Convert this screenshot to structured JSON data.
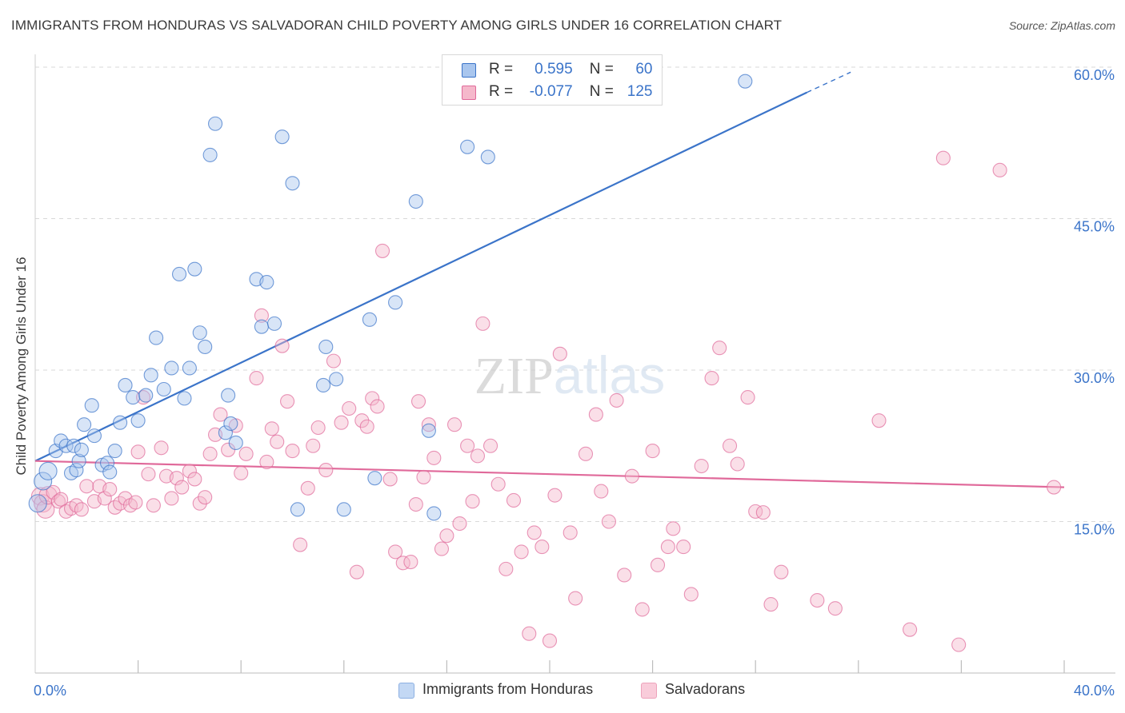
{
  "title": "IMMIGRANTS FROM HONDURAS VS SALVADORAN CHILD POVERTY AMONG GIRLS UNDER 16 CORRELATION CHART",
  "source": "Source: ZipAtlas.com",
  "watermark": "ZIPatlas",
  "colors": {
    "blue": "#3b74c9",
    "blue_fill": "#a9c6ee",
    "pink": "#e0699a",
    "pink_fill": "#f5b8cb",
    "grid": "#d9d9d9",
    "axis_text": "#3b74c9"
  },
  "stats_legend": [
    {
      "r_label": "R =",
      "r_value": "0.595",
      "n_label": "N =",
      "n_value": "60"
    },
    {
      "r_label": "R =",
      "r_value": "-0.077",
      "n_label": "N =",
      "n_value": "125"
    }
  ],
  "chart_data": {
    "type": "scatter",
    "title": "IMMIGRANTS FROM HONDURAS VS SALVADORAN CHILD POVERTY AMONG GIRLS UNDER 16 CORRELATION CHART",
    "xlabel": "",
    "ylabel": "Child Poverty Among Girls Under 16",
    "xlim": [
      0,
      40
    ],
    "ylim": [
      0,
      60
    ],
    "x_tick_labels": [
      "0.0%",
      "40.0%"
    ],
    "y_tick_labels": [
      "15.0%",
      "30.0%",
      "45.0%",
      "60.0%"
    ],
    "y_tick_values": [
      15,
      30,
      45,
      60
    ],
    "grid": true,
    "legend_position": "bottom",
    "series": [
      {
        "name": "Immigrants from Honduras",
        "color": "#3b74c9",
        "r": 0.595,
        "n": 60,
        "trend": {
          "x": [
            0,
            30
          ],
          "y": [
            21.0,
            57.5
          ],
          "dashed_to": [
            31.7,
            59.5
          ]
        },
        "points": [
          [
            0.1,
            16.8
          ],
          [
            0.3,
            19.0
          ],
          [
            0.5,
            20.0
          ],
          [
            0.8,
            22.0
          ],
          [
            1.0,
            23.0
          ],
          [
            1.2,
            22.5
          ],
          [
            1.4,
            19.8
          ],
          [
            1.5,
            22.5
          ],
          [
            1.6,
            20.1
          ],
          [
            1.7,
            21.0
          ],
          [
            1.8,
            22.1
          ],
          [
            1.9,
            24.6
          ],
          [
            2.2,
            26.5
          ],
          [
            2.3,
            23.5
          ],
          [
            2.6,
            20.6
          ],
          [
            2.8,
            20.8
          ],
          [
            2.9,
            19.9
          ],
          [
            3.1,
            22.0
          ],
          [
            3.3,
            24.8
          ],
          [
            3.5,
            28.5
          ],
          [
            3.8,
            27.3
          ],
          [
            4.0,
            25.0
          ],
          [
            4.3,
            27.5
          ],
          [
            4.5,
            29.5
          ],
          [
            4.7,
            33.2
          ],
          [
            5.0,
            28.1
          ],
          [
            5.3,
            30.2
          ],
          [
            5.6,
            39.5
          ],
          [
            5.8,
            27.2
          ],
          [
            6.0,
            30.2
          ],
          [
            6.2,
            40.0
          ],
          [
            6.4,
            33.7
          ],
          [
            6.6,
            32.3
          ],
          [
            6.8,
            51.3
          ],
          [
            7.0,
            54.4
          ],
          [
            7.4,
            23.8
          ],
          [
            7.5,
            27.5
          ],
          [
            7.6,
            24.7
          ],
          [
            7.8,
            22.8
          ],
          [
            8.6,
            39.0
          ],
          [
            8.8,
            34.3
          ],
          [
            9.0,
            38.7
          ],
          [
            9.3,
            34.6
          ],
          [
            9.6,
            53.1
          ],
          [
            10.0,
            48.5
          ],
          [
            10.2,
            16.2
          ],
          [
            11.2,
            28.5
          ],
          [
            11.3,
            32.3
          ],
          [
            11.7,
            29.1
          ],
          [
            12.0,
            16.2
          ],
          [
            13.0,
            35.0
          ],
          [
            13.2,
            19.3
          ],
          [
            14.0,
            36.7
          ],
          [
            14.8,
            46.7
          ],
          [
            15.3,
            24.0
          ],
          [
            15.5,
            15.8
          ],
          [
            16.8,
            52.1
          ],
          [
            17.6,
            51.1
          ],
          [
            23.7,
            58.7
          ],
          [
            27.6,
            58.6
          ]
        ]
      },
      {
        "name": "Salvadorans",
        "color": "#e0699a",
        "r": -0.077,
        "n": 125,
        "trend": {
          "x": [
            0,
            40
          ],
          "y": [
            21.0,
            18.4
          ]
        },
        "points": [
          [
            0.2,
            17.5
          ],
          [
            0.3,
            16.8
          ],
          [
            0.4,
            16.2
          ],
          [
            0.5,
            17.6
          ],
          [
            0.7,
            17.9
          ],
          [
            0.9,
            17.0
          ],
          [
            1.0,
            17.2
          ],
          [
            1.2,
            16.0
          ],
          [
            1.4,
            16.3
          ],
          [
            1.6,
            16.6
          ],
          [
            1.8,
            16.2
          ],
          [
            2.0,
            18.5
          ],
          [
            2.3,
            17.0
          ],
          [
            2.5,
            18.5
          ],
          [
            2.7,
            17.3
          ],
          [
            2.9,
            18.2
          ],
          [
            3.1,
            16.4
          ],
          [
            3.3,
            16.8
          ],
          [
            3.5,
            17.3
          ],
          [
            3.7,
            16.6
          ],
          [
            3.9,
            16.9
          ],
          [
            4.0,
            21.9
          ],
          [
            4.2,
            27.3
          ],
          [
            4.4,
            19.7
          ],
          [
            4.6,
            16.6
          ],
          [
            4.9,
            22.3
          ],
          [
            5.1,
            19.5
          ],
          [
            5.3,
            17.3
          ],
          [
            5.5,
            19.3
          ],
          [
            5.7,
            18.4
          ],
          [
            6.0,
            20.0
          ],
          [
            6.2,
            19.2
          ],
          [
            6.4,
            16.8
          ],
          [
            6.6,
            17.4
          ],
          [
            6.8,
            21.7
          ],
          [
            7.0,
            23.6
          ],
          [
            7.2,
            25.6
          ],
          [
            7.5,
            22.1
          ],
          [
            7.8,
            24.5
          ],
          [
            8.0,
            19.8
          ],
          [
            8.2,
            21.7
          ],
          [
            8.6,
            29.2
          ],
          [
            8.8,
            35.4
          ],
          [
            9.0,
            20.9
          ],
          [
            9.2,
            24.2
          ],
          [
            9.4,
            22.9
          ],
          [
            9.6,
            32.4
          ],
          [
            9.8,
            26.9
          ],
          [
            10.0,
            22.0
          ],
          [
            10.3,
            12.7
          ],
          [
            10.6,
            18.3
          ],
          [
            10.8,
            22.5
          ],
          [
            11.0,
            24.3
          ],
          [
            11.3,
            20.1
          ],
          [
            11.6,
            30.9
          ],
          [
            11.9,
            24.8
          ],
          [
            12.2,
            26.2
          ],
          [
            12.5,
            10.0
          ],
          [
            12.7,
            25.0
          ],
          [
            12.9,
            24.4
          ],
          [
            13.1,
            27.2
          ],
          [
            13.3,
            26.4
          ],
          [
            13.5,
            41.8
          ],
          [
            13.8,
            19.2
          ],
          [
            14.0,
            12.0
          ],
          [
            14.3,
            10.9
          ],
          [
            14.6,
            11.0
          ],
          [
            14.8,
            16.7
          ],
          [
            14.9,
            26.9
          ],
          [
            15.1,
            19.4
          ],
          [
            15.3,
            24.6
          ],
          [
            15.5,
            21.3
          ],
          [
            15.8,
            12.3
          ],
          [
            16.0,
            13.6
          ],
          [
            16.3,
            24.6
          ],
          [
            16.5,
            14.8
          ],
          [
            16.8,
            22.5
          ],
          [
            17.0,
            17.0
          ],
          [
            17.2,
            21.5
          ],
          [
            17.4,
            34.6
          ],
          [
            17.7,
            22.5
          ],
          [
            18.0,
            18.7
          ],
          [
            18.3,
            10.3
          ],
          [
            18.6,
            17.1
          ],
          [
            18.9,
            12.0
          ],
          [
            19.2,
            3.9
          ],
          [
            19.4,
            13.9
          ],
          [
            19.7,
            12.5
          ],
          [
            20.0,
            3.2
          ],
          [
            20.2,
            17.6
          ],
          [
            20.4,
            31.6
          ],
          [
            20.8,
            13.9
          ],
          [
            21.0,
            7.4
          ],
          [
            21.4,
            21.7
          ],
          [
            21.8,
            25.6
          ],
          [
            22.0,
            18.0
          ],
          [
            22.3,
            15.0
          ],
          [
            22.6,
            27.0
          ],
          [
            22.9,
            9.7
          ],
          [
            23.2,
            19.5
          ],
          [
            23.6,
            6.3
          ],
          [
            24.0,
            22.0
          ],
          [
            24.2,
            10.7
          ],
          [
            24.6,
            12.5
          ],
          [
            24.8,
            14.3
          ],
          [
            25.2,
            12.5
          ],
          [
            25.5,
            7.8
          ],
          [
            25.9,
            20.5
          ],
          [
            26.3,
            29.2
          ],
          [
            26.6,
            32.2
          ],
          [
            27.0,
            22.5
          ],
          [
            27.3,
            20.7
          ],
          [
            27.7,
            27.3
          ],
          [
            28.0,
            16.0
          ],
          [
            28.3,
            15.9
          ],
          [
            28.6,
            6.8
          ],
          [
            29.0,
            10.0
          ],
          [
            30.4,
            7.2
          ],
          [
            31.1,
            6.4
          ],
          [
            32.8,
            25.0
          ],
          [
            34.0,
            4.3
          ],
          [
            35.3,
            51.0
          ],
          [
            35.9,
            2.8
          ],
          [
            37.5,
            49.8
          ],
          [
            39.6,
            18.4
          ]
        ]
      }
    ]
  }
}
